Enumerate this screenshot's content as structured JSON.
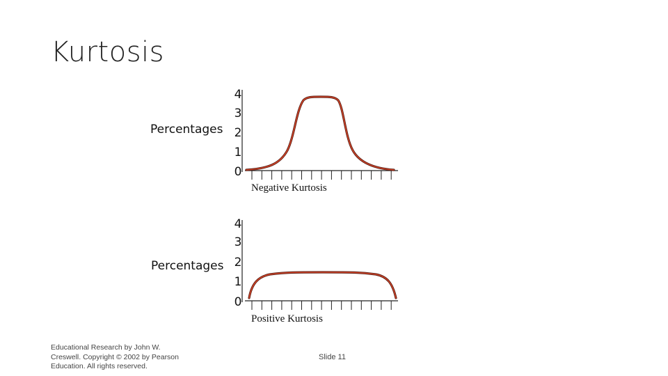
{
  "slide": {
    "title": "Kurtosis",
    "footer": "Educational Research by John W. Creswell. Copyright © 2002 by Pearson Education. All rights reserved.",
    "slide_number": "Slide 11"
  },
  "colors": {
    "curve_outer": "#5a1f15",
    "curve_inner": "#e0482a",
    "axis": "#222222"
  },
  "chart_data": [
    {
      "type": "line",
      "ylabel": "Percentages",
      "caption": "Negative Kurtosis",
      "y_ticks": [
        "4",
        "3",
        "2",
        "1",
        "0"
      ],
      "x_tick_count": 15,
      "shape": "peaked"
    },
    {
      "type": "line",
      "ylabel": "Percentages",
      "caption": "Positive Kurtosis",
      "y_ticks": [
        "4",
        "3",
        "2",
        "1",
        "0"
      ],
      "x_tick_count": 15,
      "shape": "flat"
    }
  ]
}
